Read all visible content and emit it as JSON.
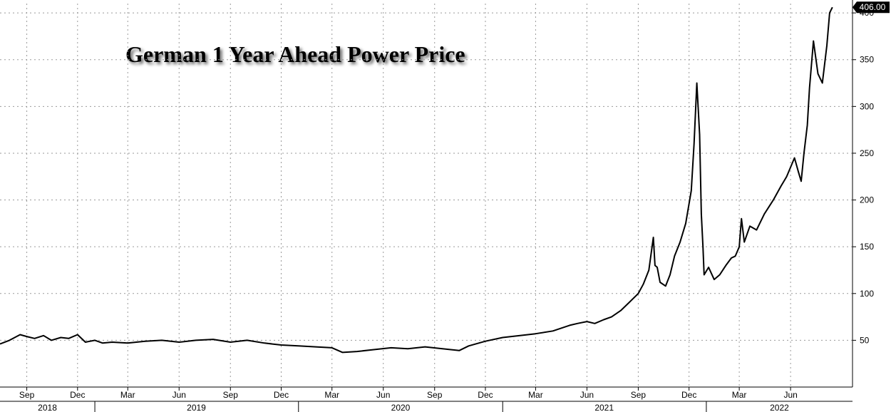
{
  "chart_data": {
    "type": "line",
    "title": "German 1 Year Ahead Power Price",
    "xlabel": "",
    "ylabel": "",
    "ylim": [
      0,
      410
    ],
    "y_ticks": [
      50,
      100,
      150,
      200,
      250,
      300,
      350,
      400
    ],
    "grid": true,
    "last_value_label": "406.00",
    "x_tick_labels": [
      "Sep",
      "Dec",
      "Mar",
      "Jun",
      "Sep",
      "Dec",
      "Mar",
      "Jun",
      "Sep",
      "Dec",
      "Mar",
      "Jun",
      "Sep",
      "Dec",
      "Mar",
      "Jun"
    ],
    "x_tick_dates": [
      "2018-09-01",
      "2018-12-01",
      "2019-03-01",
      "2019-06-01",
      "2019-09-01",
      "2019-12-01",
      "2020-03-01",
      "2020-06-01",
      "2020-09-01",
      "2020-12-01",
      "2021-03-01",
      "2021-06-01",
      "2021-09-01",
      "2021-12-01",
      "2022-03-01",
      "2022-06-01"
    ],
    "year_labels": [
      "2018",
      "2019",
      "2020",
      "2021",
      "2022"
    ],
    "x_range": [
      "2018-07-15",
      "2022-09-20"
    ],
    "series": [
      {
        "x": [
          "2018-07-15",
          "2018-08-01",
          "2018-08-20",
          "2018-09-01",
          "2018-09-15",
          "2018-10-01",
          "2018-10-15",
          "2018-11-01",
          "2018-11-15",
          "2018-12-01",
          "2018-12-15",
          "2019-01-01",
          "2019-01-15",
          "2019-02-01",
          "2019-03-01",
          "2019-04-01",
          "2019-05-01",
          "2019-06-01",
          "2019-07-01",
          "2019-08-01",
          "2019-09-01",
          "2019-10-01",
          "2019-11-01",
          "2019-12-01",
          "2020-01-01",
          "2020-02-01",
          "2020-03-01",
          "2020-03-20",
          "2020-04-15",
          "2020-05-15",
          "2020-06-15",
          "2020-07-15",
          "2020-08-15",
          "2020-09-15",
          "2020-10-15",
          "2020-11-01",
          "2020-12-01",
          "2021-01-01",
          "2021-02-01",
          "2021-03-01",
          "2021-04-01",
          "2021-05-01",
          "2021-05-15",
          "2021-06-01",
          "2021-06-15",
          "2021-07-01",
          "2021-07-15",
          "2021-08-01",
          "2021-08-15",
          "2021-09-01",
          "2021-09-10",
          "2021-09-20",
          "2021-09-28",
          "2021-10-01",
          "2021-10-05",
          "2021-10-10",
          "2021-10-20",
          "2021-10-28",
          "2021-11-05",
          "2021-11-15",
          "2021-11-25",
          "2021-12-05",
          "2021-12-10",
          "2021-12-15",
          "2021-12-20",
          "2021-12-23",
          "2021-12-26",
          "2021-12-28",
          "2022-01-05",
          "2022-01-15",
          "2022-01-25",
          "2022-02-05",
          "2022-02-15",
          "2022-02-22",
          "2022-03-01",
          "2022-03-05",
          "2022-03-10",
          "2022-03-20",
          "2022-04-01",
          "2022-04-15",
          "2022-05-01",
          "2022-05-15",
          "2022-05-25",
          "2022-06-01",
          "2022-06-08",
          "2022-06-15",
          "2022-06-20",
          "2022-06-25",
          "2022-07-01",
          "2022-07-05",
          "2022-07-12",
          "2022-07-20",
          "2022-07-28",
          "2022-08-05",
          "2022-08-10",
          "2022-08-15"
        ],
        "values": [
          46,
          50,
          56,
          54,
          52,
          55,
          50,
          53,
          52,
          56,
          48,
          50,
          47,
          48,
          47,
          49,
          50,
          48,
          50,
          51,
          48,
          50,
          47,
          45,
          44,
          43,
          42,
          37,
          38,
          40,
          42,
          41,
          43,
          41,
          39,
          44,
          49,
          53,
          55,
          57,
          60,
          66,
          68,
          70,
          68,
          72,
          75,
          82,
          90,
          100,
          110,
          125,
          160,
          130,
          128,
          112,
          108,
          120,
          140,
          155,
          175,
          210,
          260,
          325,
          270,
          185,
          150,
          120,
          128,
          115,
          120,
          130,
          138,
          140,
          150,
          180,
          155,
          172,
          168,
          185,
          200,
          215,
          225,
          235,
          245,
          230,
          220,
          250,
          280,
          320,
          370,
          335,
          325,
          365,
          400,
          406
        ]
      }
    ]
  }
}
